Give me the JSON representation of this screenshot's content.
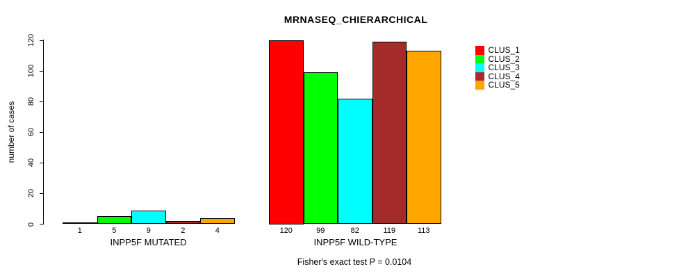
{
  "chart_data": {
    "type": "bar",
    "title": "MRNASEQ_CHIERARCHICAL",
    "ylabel": "number of cases",
    "xlabel": "",
    "ylim": [
      0,
      120
    ],
    "yticks": [
      0,
      20,
      40,
      60,
      80,
      100,
      120
    ],
    "grid": false,
    "legend_position": "right",
    "bar_border_color": "#000000",
    "background_color": "#ffffff",
    "series_labels": [
      "CLUS_1",
      "CLUS_2",
      "CLUS_3",
      "CLUS_4",
      "CLUS_5"
    ],
    "colors": [
      "#ff0000",
      "#00ff00",
      "#00ffff",
      "#a52a2a",
      "#ffa500"
    ],
    "groups": [
      {
        "label": "INPP5F MUTATED",
        "values": [
          1,
          5,
          9,
          2,
          4
        ]
      },
      {
        "label": "INPP5F WILD-TYPE",
        "values": [
          120,
          99,
          82,
          119,
          113
        ]
      }
    ],
    "bar_value_labels": [
      [
        "1",
        "5",
        "9",
        "2",
        "4"
      ],
      [
        "120",
        "99",
        "82",
        "119",
        "113"
      ]
    ],
    "annotation": "Fisher's exact test P = 0.0104"
  }
}
